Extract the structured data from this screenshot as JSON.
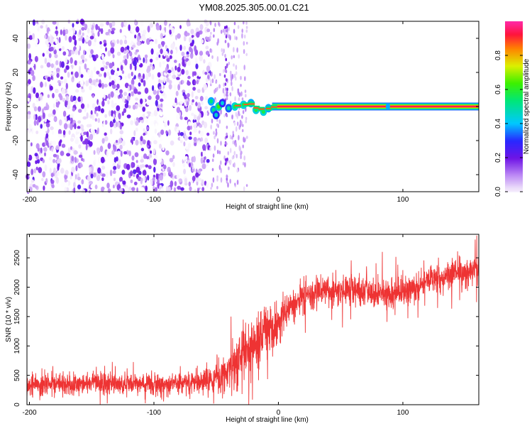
{
  "title": "YM08.2025.305.00.01.C21",
  "chart_data": [
    {
      "type": "heatmap",
      "title": "YM08.2025.305.00.01.C21",
      "xlabel": "Height of straight line (km)",
      "ylabel": "Frequency (Hz)",
      "xlim": [
        -202,
        161
      ],
      "ylim": [
        -50,
        50
      ],
      "x_ticks": [
        -200,
        -100,
        0,
        100
      ],
      "x_tick_labels": [
        "-200",
        "-100",
        "0",
        "100"
      ],
      "y_ticks": [
        -40,
        -20,
        0,
        20,
        40
      ],
      "y_tick_labels": [
        "-40",
        "-20",
        "0",
        "20",
        "40"
      ],
      "colorbar": {
        "label": "Normalized spectral amplitude",
        "range": [
          0,
          1
        ],
        "ticks": [
          0.0,
          0.2,
          0.4,
          0.6,
          0.8
        ],
        "tick_labels": [
          "0.0",
          "0.2",
          "0.4",
          "0.6",
          "0.8"
        ],
        "colormap": "rainbow-on-white"
      },
      "features": {
        "noise_region_x": [
          -202,
          -55
        ],
        "onset_x": -58,
        "signal_frequency_hz": 0,
        "signal_start_x": -58,
        "signal_end_x": 161,
        "signal_amplitude": 0.95
      }
    },
    {
      "type": "line",
      "xlabel": "Height of straight line (km)",
      "ylabel": "SNR (10 * v/v)",
      "xlim": [
        -202,
        161
      ],
      "ylim": [
        0,
        2900
      ],
      "x_ticks": [
        -200,
        -100,
        0,
        100
      ],
      "x_tick_labels": [
        "-200",
        "-100",
        "0",
        "100"
      ],
      "y_ticks": [
        0,
        500,
        1000,
        1500,
        2000,
        2500
      ],
      "y_tick_labels": [
        "0",
        "500",
        "1000",
        "1500",
        "2000",
        "2500"
      ],
      "line_color": "#ee3333",
      "trend": {
        "x": [
          -202,
          -150,
          -100,
          -60,
          -45,
          -30,
          -10,
          0,
          10,
          20,
          40,
          60,
          80,
          100,
          120,
          140,
          161
        ],
        "y": [
          330,
          360,
          350,
          370,
          500,
          800,
          1200,
          1400,
          1700,
          1850,
          1950,
          1950,
          1900,
          1900,
          2100,
          2200,
          2300
        ]
      },
      "noise_amplitude": {
        "x": [
          -202,
          -60,
          -45,
          -20,
          0,
          30,
          161
        ],
        "y": [
          180,
          180,
          350,
          450,
          350,
          250,
          250
        ]
      }
    }
  ]
}
